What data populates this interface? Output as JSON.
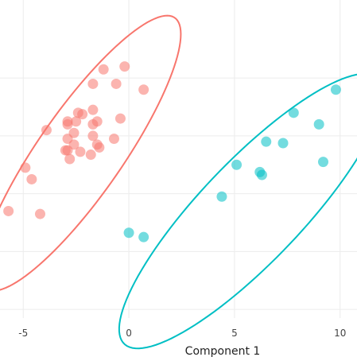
{
  "chart_data": {
    "type": "scatter",
    "xlabel": "Component 1",
    "ylabel": "",
    "title": "",
    "xlim": [
      -6.1,
      10.8
    ],
    "ylim": [
      -4.3,
      6.7
    ],
    "x_ticks": [
      -5,
      0,
      5,
      10
    ],
    "x_tick_labels": [
      "-5",
      "0",
      "5",
      "10"
    ],
    "y_grid": [
      -4,
      -2,
      0,
      2,
      4
    ],
    "grid": true,
    "legend": "none",
    "series": [
      {
        "color": "#F8766D",
        "ellipse": {
          "center": [
            -2.3,
            1.4
          ],
          "semi_major": 6.5,
          "semi_minor": 1.75,
          "angle_deg": 45
        },
        "points": [
          [
            -1.2,
            4.3
          ],
          [
            -0.2,
            4.4
          ],
          [
            -1.7,
            3.8
          ],
          [
            -0.6,
            3.8
          ],
          [
            0.7,
            3.6
          ],
          [
            -1.7,
            2.9
          ],
          [
            -2.4,
            2.8
          ],
          [
            -2.2,
            2.75
          ],
          [
            -0.4,
            2.6
          ],
          [
            -2.9,
            2.5
          ],
          [
            -2.5,
            2.5
          ],
          [
            -1.5,
            2.5
          ],
          [
            -1.7,
            2.4
          ],
          [
            -2.9,
            2.4
          ],
          [
            -3.9,
            2.2
          ],
          [
            -2.6,
            2.1
          ],
          [
            -1.7,
            2.0
          ],
          [
            -2.9,
            1.9
          ],
          [
            -0.7,
            1.9
          ],
          [
            -2.6,
            1.7
          ],
          [
            -1.5,
            1.7
          ],
          [
            -1.4,
            1.6
          ],
          [
            -3.0,
            1.5
          ],
          [
            -2.9,
            1.5
          ],
          [
            -2.3,
            1.45
          ],
          [
            -1.8,
            1.35
          ],
          [
            -2.8,
            1.2
          ],
          [
            -4.9,
            0.9
          ],
          [
            -4.6,
            0.5
          ],
          [
            -5.7,
            -0.6
          ],
          [
            -4.2,
            -0.7
          ]
        ]
      },
      {
        "color": "#00BFC4",
        "ellipse": {
          "center": [
            5.8,
            -0.6
          ],
          "semi_major": 7.6,
          "semi_minor": 2.0,
          "angle_deg": 36
        },
        "points": [
          [
            9.8,
            3.6
          ],
          [
            7.8,
            2.8
          ],
          [
            9.0,
            2.4
          ],
          [
            6.5,
            1.8
          ],
          [
            7.3,
            1.75
          ],
          [
            9.2,
            1.1
          ],
          [
            5.1,
            1.0
          ],
          [
            6.2,
            0.75
          ],
          [
            6.3,
            0.65
          ],
          [
            4.4,
            -0.1
          ],
          [
            0.0,
            -1.35
          ],
          [
            0.7,
            -1.5
          ]
        ]
      }
    ]
  }
}
